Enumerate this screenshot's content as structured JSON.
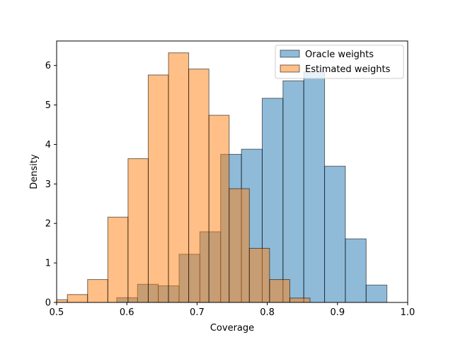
{
  "chart_data": {
    "type": "bar",
    "title": "",
    "xlabel": "Coverage",
    "ylabel": "Density",
    "xlim": [
      0.5,
      1.0
    ],
    "ylim": [
      0,
      6.62
    ],
    "xticks": [
      "0.5",
      "0.6",
      "0.7",
      "0.8",
      "0.9",
      "1.0"
    ],
    "xtick_values": [
      0.5,
      0.6,
      0.7,
      0.8,
      0.9,
      1.0
    ],
    "yticks": [
      "0",
      "1",
      "2",
      "3",
      "4",
      "5",
      "6"
    ],
    "ytick_values": [
      0,
      1,
      2,
      3,
      4,
      5,
      6
    ],
    "grid": false,
    "legend_position": "top-right",
    "series": [
      {
        "name": "Oracle weights",
        "color": "#1f77b4",
        "alpha": 0.5,
        "bins": [
          {
            "x0": 0.5856,
            "x1": 0.6152,
            "value": 0.12
          },
          {
            "x0": 0.6152,
            "x1": 0.6448,
            "value": 0.46
          },
          {
            "x0": 0.6448,
            "x1": 0.6744,
            "value": 0.42
          },
          {
            "x0": 0.6744,
            "x1": 0.704,
            "value": 1.22
          },
          {
            "x0": 0.704,
            "x1": 0.7336,
            "value": 1.79
          },
          {
            "x0": 0.7336,
            "x1": 0.7632,
            "value": 3.75
          },
          {
            "x0": 0.7632,
            "x1": 0.7928,
            "value": 3.88
          },
          {
            "x0": 0.7928,
            "x1": 0.8224,
            "value": 5.17
          },
          {
            "x0": 0.8224,
            "x1": 0.852,
            "value": 5.61
          },
          {
            "x0": 0.852,
            "x1": 0.8816,
            "value": 5.84
          },
          {
            "x0": 0.8816,
            "x1": 0.9112,
            "value": 3.45
          },
          {
            "x0": 0.9112,
            "x1": 0.9408,
            "value": 1.61
          },
          {
            "x0": 0.9408,
            "x1": 0.9704,
            "value": 0.44
          }
        ]
      },
      {
        "name": "Estimated weights",
        "color": "#ff7f0e",
        "alpha": 0.5,
        "bins": [
          {
            "x0": 0.4865,
            "x1": 0.5153,
            "value": 0.07
          },
          {
            "x0": 0.5153,
            "x1": 0.5441,
            "value": 0.2
          },
          {
            "x0": 0.5441,
            "x1": 0.5729,
            "value": 0.58
          },
          {
            "x0": 0.5729,
            "x1": 0.6017,
            "value": 2.16
          },
          {
            "x0": 0.6017,
            "x1": 0.6305,
            "value": 3.64
          },
          {
            "x0": 0.6305,
            "x1": 0.6593,
            "value": 5.76
          },
          {
            "x0": 0.6593,
            "x1": 0.6881,
            "value": 6.32
          },
          {
            "x0": 0.6881,
            "x1": 0.7169,
            "value": 5.91
          },
          {
            "x0": 0.7169,
            "x1": 0.7457,
            "value": 4.74
          },
          {
            "x0": 0.7457,
            "x1": 0.7745,
            "value": 2.88
          },
          {
            "x0": 0.7745,
            "x1": 0.8033,
            "value": 1.37
          },
          {
            "x0": 0.8033,
            "x1": 0.8321,
            "value": 0.58
          },
          {
            "x0": 0.8321,
            "x1": 0.8609,
            "value": 0.11
          }
        ]
      }
    ]
  }
}
